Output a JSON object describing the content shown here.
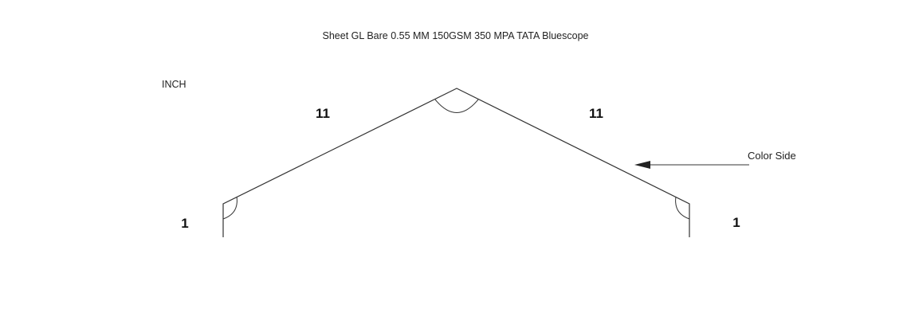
{
  "sheet_title": "Sheet GL Bare 0.55 MM 150GSM 350 MPA TATA Bluescope",
  "unit_label": "INCH",
  "dimensions": {
    "left_flange": "1",
    "left_slope": "11",
    "right_slope": "11",
    "right_flange": "1"
  },
  "annotation": {
    "color_side_label": "Color Side"
  },
  "colors": {
    "line": "#333333",
    "text": "#222222",
    "background": "#ffffff"
  }
}
